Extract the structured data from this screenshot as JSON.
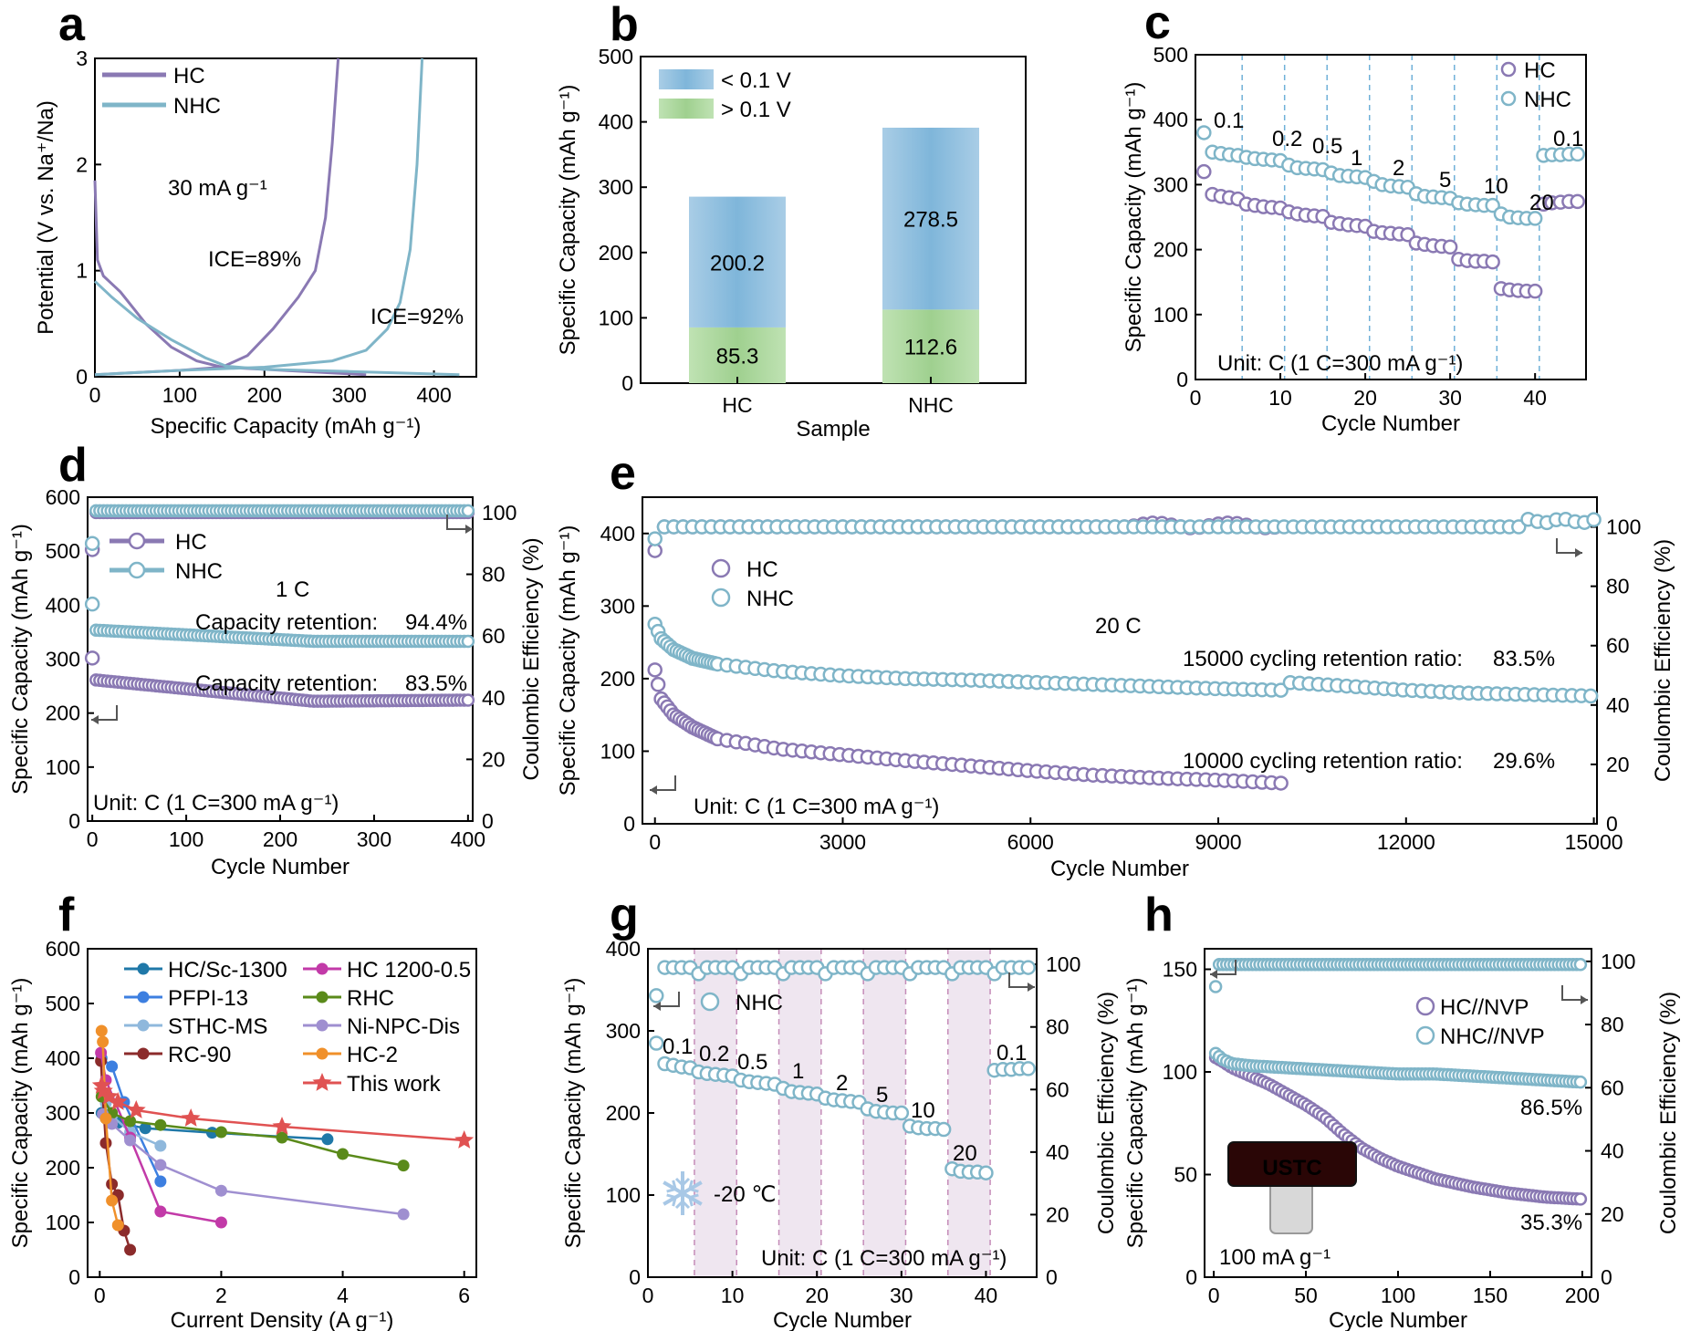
{
  "colors": {
    "hc": "#8a79b3",
    "nhc": "#7fb5c8",
    "red": "#e05252",
    "bar_blue": "#8fbfdc",
    "bar_green": "#a9d69a",
    "grid": "#6fb0d8",
    "shade": "#efe6f0"
  },
  "panel_labels": [
    "a",
    "b",
    "c",
    "d",
    "e",
    "f",
    "g",
    "h"
  ],
  "chart_data": [
    {
      "panel": "a",
      "type": "line",
      "xlabel": "Specific Capacity (mAh g⁻¹)",
      "ylabel": "Potential (V vs. Na⁺/Na)",
      "xlim": [
        0,
        450
      ],
      "ylim": [
        0,
        3
      ],
      "xticks": [
        "0",
        "100",
        "200",
        "300",
        "400"
      ],
      "yticks": [
        "0",
        "1",
        "2",
        "3"
      ],
      "legend": [
        "HC",
        "NHC"
      ],
      "annotations": [
        "30 mA g⁻¹",
        "ICE=89%",
        "ICE=92%"
      ],
      "series": [
        {
          "name": "HC",
          "discharge": [
            [
              0,
              1.85
            ],
            [
              3,
              1.1
            ],
            [
              10,
              0.95
            ],
            [
              30,
              0.8
            ],
            [
              60,
              0.5
            ],
            [
              90,
              0.28
            ],
            [
              120,
              0.15
            ],
            [
              150,
              0.09
            ],
            [
              320,
              0.02
            ]
          ],
          "charge": [
            [
              0,
              0.02
            ],
            [
              100,
              0.06
            ],
            [
              150,
              0.09
            ],
            [
              180,
              0.2
            ],
            [
              210,
              0.45
            ],
            [
              240,
              0.75
            ],
            [
              260,
              1.0
            ],
            [
              272,
              1.5
            ],
            [
              280,
              2.2
            ],
            [
              287,
              3.0
            ]
          ]
        },
        {
          "name": "NHC",
          "discharge": [
            [
              0,
              0.9
            ],
            [
              20,
              0.75
            ],
            [
              50,
              0.55
            ],
            [
              90,
              0.35
            ],
            [
              130,
              0.18
            ],
            [
              155,
              0.1
            ],
            [
              200,
              0.07
            ],
            [
              300,
              0.05
            ],
            [
              430,
              0.02
            ]
          ],
          "charge": [
            [
              0,
              0.02
            ],
            [
              100,
              0.06
            ],
            [
              200,
              0.09
            ],
            [
              280,
              0.15
            ],
            [
              320,
              0.25
            ],
            [
              345,
              0.45
            ],
            [
              360,
              0.7
            ],
            [
              372,
              1.2
            ],
            [
              380,
              2.0
            ],
            [
              386,
              3.0
            ]
          ]
        }
      ]
    },
    {
      "panel": "b",
      "type": "bar",
      "xlabel": "Sample",
      "ylabel": "Specific Capacity (mAh g⁻¹)",
      "ylim": [
        0,
        500
      ],
      "yticks": [
        "0",
        "100",
        "200",
        "300",
        "400",
        "500"
      ],
      "categories": [
        "HC",
        "NHC"
      ],
      "series": [
        {
          "name": "> 0.1 V",
          "values": [
            85.3,
            112.6
          ],
          "labels": [
            "85.3",
            "112.6"
          ]
        },
        {
          "name": "< 0.1 V",
          "values": [
            200.2,
            278.5
          ],
          "labels": [
            "200.2",
            "278.5"
          ]
        }
      ],
      "legend": [
        "< 0.1 V",
        "> 0.1 V"
      ]
    },
    {
      "panel": "c",
      "type": "scatter",
      "xlabel": "Cycle Number",
      "ylabel": "Specific Capacity (mAh g⁻¹)",
      "xlim": [
        0,
        46
      ],
      "ylim": [
        0,
        500
      ],
      "xticks": [
        "0",
        "10",
        "20",
        "30",
        "40"
      ],
      "yticks": [
        "0",
        "100",
        "200",
        "300",
        "400",
        "500"
      ],
      "legend": [
        "HC",
        "NHC"
      ],
      "rate_labels": [
        "0.1",
        "0.2",
        "0.5",
        "1",
        "2",
        "5",
        "10",
        "20",
        "0.1"
      ],
      "unit_note": "Unit: C (1 C=300 mA g⁻¹)",
      "series": [
        {
          "name": "HC",
          "x": [
            1,
            2,
            3,
            4,
            5,
            6,
            7,
            8,
            9,
            10,
            11,
            12,
            13,
            14,
            15,
            16,
            17,
            18,
            19,
            20,
            21,
            22,
            23,
            24,
            25,
            26,
            27,
            28,
            29,
            30,
            31,
            32,
            33,
            34,
            35,
            36,
            37,
            38,
            39,
            40,
            41,
            42,
            43,
            44,
            45
          ],
          "y": [
            320,
            285,
            282,
            280,
            278,
            270,
            268,
            266,
            265,
            264,
            258,
            255,
            253,
            252,
            251,
            242,
            240,
            238,
            237,
            236,
            228,
            226,
            225,
            224,
            223,
            210,
            208,
            206,
            205,
            204,
            185,
            183,
            182,
            182,
            181,
            140,
            138,
            137,
            136,
            136,
            270,
            272,
            273,
            274,
            274
          ]
        },
        {
          "name": "NHC",
          "x": [
            1,
            2,
            3,
            4,
            5,
            6,
            7,
            8,
            9,
            10,
            11,
            12,
            13,
            14,
            15,
            16,
            17,
            18,
            19,
            20,
            21,
            22,
            23,
            24,
            25,
            26,
            27,
            28,
            29,
            30,
            31,
            32,
            33,
            34,
            35,
            36,
            37,
            38,
            39,
            40,
            41,
            42,
            43,
            44,
            45
          ],
          "y": [
            380,
            350,
            348,
            346,
            345,
            342,
            340,
            339,
            338,
            337,
            330,
            326,
            325,
            324,
            323,
            318,
            314,
            313,
            312,
            311,
            305,
            300,
            298,
            297,
            296,
            286,
            282,
            281,
            280,
            279,
            272,
            270,
            269,
            268,
            268,
            255,
            250,
            249,
            248,
            248,
            345,
            346,
            346,
            347,
            347
          ]
        }
      ]
    },
    {
      "panel": "d",
      "type": "scatter",
      "xlabel": "Cycle Number",
      "ylabel": "Specific Capacity (mAh g⁻¹)",
      "y2label": "Coulombic Efficiency (%)",
      "xlim": [
        0,
        400
      ],
      "ylim": [
        0,
        600
      ],
      "y2lim": [
        0,
        105
      ],
      "xticks": [
        "0",
        "100",
        "200",
        "300",
        "400"
      ],
      "yticks": [
        "0",
        "100",
        "200",
        "300",
        "400",
        "500",
        "600"
      ],
      "y2ticks": [
        "0",
        "20",
        "40",
        "60",
        "80",
        "100"
      ],
      "legend": [
        "HC",
        "NHC"
      ],
      "rate": "1 C",
      "unit_note": "Unit: C (1 C=300 mA g⁻¹)",
      "retention_label": "Capacity retention:",
      "retention": {
        "NHC": "94.4%",
        "HC": "83.5%"
      },
      "series": [
        {
          "name": "HC",
          "start": 302,
          "first": 262,
          "min": 222,
          "end": 224,
          "ce_start": 88,
          "ce": 100
        },
        {
          "name": "NHC",
          "start": 402,
          "first": 354,
          "min": 333,
          "end": 333,
          "ce_start": 90,
          "ce": 100
        }
      ]
    },
    {
      "panel": "e",
      "type": "scatter",
      "xlabel": "Cycle Number",
      "ylabel": "Specific Capacity (mAh g⁻¹)",
      "y2label": "Coulombic Efficiency (%)",
      "xlim": [
        0,
        15000
      ],
      "ylim": [
        0,
        450
      ],
      "y2lim": [
        0,
        110
      ],
      "xticks": [
        "0",
        "3000",
        "6000",
        "9000",
        "12000",
        "15000"
      ],
      "yticks": [
        "0",
        "100",
        "200",
        "300",
        "400"
      ],
      "y2ticks": [
        "0",
        "20",
        "40",
        "60",
        "80",
        "100"
      ],
      "legend": [
        "HC",
        "NHC"
      ],
      "rate": "20 C",
      "unit_note": "Unit: C (1 C=300 mA g⁻¹)",
      "retention_texts": [
        {
          "label": "15000 cycling retention ratio:",
          "value": "83.5%"
        },
        {
          "label": "10000 cycling retention ratio:",
          "value": "29.6%"
        }
      ],
      "series": [
        {
          "name": "HC",
          "x": [
            0,
            100,
            300,
            600,
            1000,
            2000,
            3000,
            4000,
            5000,
            6000,
            7000,
            8000,
            9000,
            10000
          ],
          "y": [
            212,
            172,
            150,
            133,
            117,
            103,
            95,
            87,
            80,
            73,
            67,
            63,
            60,
            56
          ]
        },
        {
          "name": "NHC",
          "x": [
            0,
            100,
            300,
            600,
            1000,
            2000,
            3000,
            4000,
            5000,
            6000,
            7000,
            8000,
            9000,
            10000,
            10050,
            11000,
            12000,
            13000,
            14000,
            15000
          ],
          "y": [
            275,
            255,
            240,
            228,
            220,
            210,
            204,
            200,
            198,
            195,
            192,
            189,
            186,
            184,
            195,
            190,
            184,
            180,
            178,
            176
          ]
        }
      ]
    },
    {
      "panel": "f",
      "type": "line",
      "xlabel": "Current Density (A g⁻¹)",
      "ylabel": "Specific Capacity (mAh g⁻¹)",
      "xlim": [
        -0.2,
        6.2
      ],
      "ylim": [
        0,
        600
      ],
      "xticks": [
        "0",
        "2",
        "4",
        "6"
      ],
      "yticks": [
        "0",
        "100",
        "200",
        "300",
        "400",
        "500",
        "600"
      ],
      "series": [
        {
          "name": "HC/Sc-1300",
          "color": "#1f78a8",
          "x": [
            0.03,
            0.1,
            0.3,
            0.75,
            1.85,
            3.75
          ],
          "y": [
            300,
            290,
            282,
            272,
            264,
            252
          ]
        },
        {
          "name": "PFPI-13",
          "color": "#3d7fe0",
          "x": [
            0.03,
            0.2,
            0.4,
            1.0
          ],
          "y": [
            400,
            385,
            320,
            175
          ]
        },
        {
          "name": "STHC-MS",
          "color": "#8fb8dc",
          "x": [
            0.05,
            0.1,
            0.2,
            0.5,
            1.0
          ],
          "y": [
            330,
            318,
            295,
            265,
            240
          ]
        },
        {
          "name": "RC-90",
          "color": "#8b2b2b",
          "x": [
            0.02,
            0.05,
            0.1,
            0.2,
            0.3,
            0.4,
            0.5
          ],
          "y": [
            395,
            330,
            245,
            170,
            150,
            85,
            50
          ]
        },
        {
          "name": "HC 1200-0.5",
          "color": "#c23aa8",
          "x": [
            0.02,
            0.1,
            0.5,
            1.0,
            2.0
          ],
          "y": [
            410,
            360,
            255,
            120,
            100
          ]
        },
        {
          "name": "RHC",
          "color": "#5a8a1a",
          "x": [
            0.03,
            0.2,
            0.5,
            1.0,
            2.0,
            3.0,
            4.0,
            5.0
          ],
          "y": [
            330,
            300,
            285,
            278,
            265,
            255,
            225,
            204
          ]
        },
        {
          "name": "Ni-NPC-Dis",
          "color": "#9f8fd0",
          "x": [
            0.05,
            0.2,
            0.5,
            1.0,
            2.0,
            5.0
          ],
          "y": [
            298,
            280,
            250,
            205,
            158,
            115
          ]
        },
        {
          "name": "HC-2",
          "color": "#f0902a",
          "x": [
            0.03,
            0.05,
            0.1,
            0.2,
            0.3
          ],
          "y": [
            450,
            430,
            290,
            140,
            95
          ]
        },
        {
          "name": "This work",
          "color": "#e05252",
          "x": [
            0.03,
            0.06,
            0.15,
            0.3,
            0.6,
            1.5,
            3.0,
            6.0
          ],
          "y": [
            350,
            340,
            330,
            320,
            305,
            290,
            275,
            250
          ]
        }
      ]
    },
    {
      "panel": "g",
      "type": "scatter",
      "xlabel": "Cycle Number",
      "ylabel": "Specific Capacity (mAh g⁻¹)",
      "y2label": "Coulombic Efficiency (%)",
      "xlim": [
        0,
        46
      ],
      "ylim": [
        0,
        400
      ],
      "y2lim": [
        0,
        105
      ],
      "xticks": [
        "0",
        "10",
        "20",
        "30",
        "40"
      ],
      "yticks": [
        "0",
        "100",
        "200",
        "300",
        "400"
      ],
      "y2ticks": [
        "0",
        "20",
        "40",
        "60",
        "80",
        "100"
      ],
      "legend": [
        "NHC"
      ],
      "temp": "-20 ℃",
      "rate_labels": [
        "0.1",
        "0.2",
        "0.5",
        "1",
        "2",
        "5",
        "10",
        "20",
        "0.1"
      ],
      "unit_note": "Unit: C (1 C=300 mA g⁻¹)",
      "series": [
        {
          "name": "NHC",
          "y": [
            285,
            260,
            258,
            256,
            255,
            250,
            248,
            247,
            246,
            245,
            240,
            238,
            237,
            236,
            235,
            230,
            226,
            225,
            224,
            223,
            218,
            216,
            215,
            214,
            213,
            205,
            202,
            201,
            200,
            200,
            184,
            182,
            181,
            181,
            180,
            132,
            129,
            128,
            128,
            127,
            252,
            253,
            253,
            254,
            254
          ]
        }
      ]
    },
    {
      "panel": "h",
      "type": "scatter",
      "xlabel": "Cycle Number",
      "ylabel": "Specific Capacity (mAh g⁻¹)",
      "y2label": "Coulombic Efficiency (%)",
      "xlim": [
        -5,
        205
      ],
      "ylim": [
        0,
        160
      ],
      "y2lim": [
        0,
        104
      ],
      "xticks": [
        "0",
        "50",
        "100",
        "150",
        "200"
      ],
      "yticks": [
        "0",
        "50",
        "100",
        "150"
      ],
      "y2ticks": [
        "0",
        "20",
        "40",
        "60",
        "80",
        "100"
      ],
      "legend": [
        "HC//NVP",
        "NHC//NVP"
      ],
      "current": "100 mA g⁻¹",
      "retention": {
        "NHC": "86.5%",
        "HC": "35.3%"
      },
      "led_text": "USTC",
      "series": [
        {
          "name": "HC//NVP",
          "x": [
            1,
            5,
            10,
            20,
            30,
            40,
            50,
            60,
            70,
            80,
            90,
            100,
            120,
            140,
            160,
            180,
            200
          ],
          "y": [
            107,
            105,
            102,
            98,
            94,
            89,
            84,
            78,
            70,
            63,
            58,
            54,
            48,
            44,
            41,
            39,
            38
          ]
        },
        {
          "name": "NHC//NVP",
          "x": [
            1,
            5,
            10,
            20,
            40,
            60,
            80,
            100,
            120,
            140,
            160,
            180,
            200
          ],
          "y": [
            109,
            106,
            104,
            103,
            102,
            101,
            100,
            99,
            99,
            98,
            97,
            96,
            95
          ]
        }
      ]
    }
  ]
}
